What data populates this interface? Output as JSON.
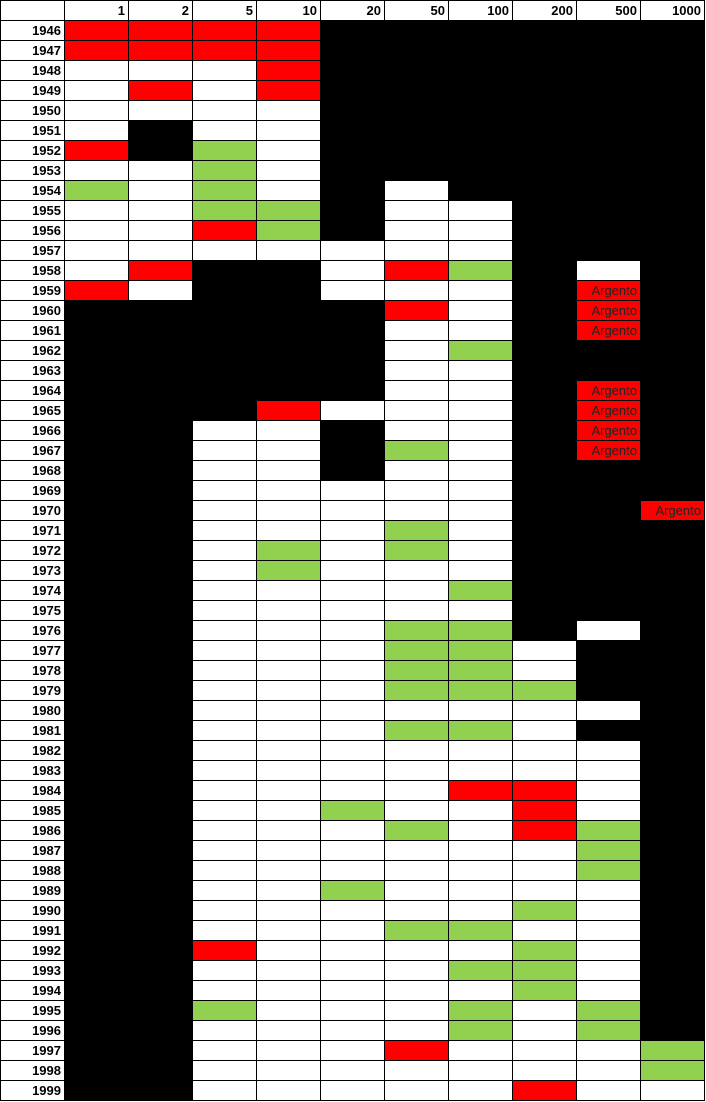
{
  "header": {
    "corner": null,
    "columns": [
      "1",
      "2",
      "5",
      "10",
      "20",
      "50",
      "100",
      "200",
      "500",
      "1000"
    ]
  },
  "palette": {
    "W": "#ffffff",
    "B": "#000000",
    "R": "#ff0000",
    "G": "#92d050"
  },
  "rows": [
    {
      "year": "1946",
      "fill": "RRRRBBBBBB"
    },
    {
      "year": "1947",
      "fill": "RRRRBBBBBB"
    },
    {
      "year": "1948",
      "fill": "WWWRBBBBBB"
    },
    {
      "year": "1949",
      "fill": "WRWRBBBBBB"
    },
    {
      "year": "1950",
      "fill": "WWWWBBBBBB"
    },
    {
      "year": "1951",
      "fill": "WBWWBBBBBB"
    },
    {
      "year": "1952",
      "fill": "RBGWBBBBBB"
    },
    {
      "year": "1953",
      "fill": "WWGWBBBBBB"
    },
    {
      "year": "1954",
      "fill": "GWGWBWBBBB"
    },
    {
      "year": "1955",
      "fill": "WWGGBWWBBB"
    },
    {
      "year": "1956",
      "fill": "WWRGBWWBBB"
    },
    {
      "year": "1957",
      "fill": "WWWWWWWBBB"
    },
    {
      "year": "1958",
      "fill": "WRBBWRGBWB"
    },
    {
      "year": "1959",
      "fill": "RWBBWWWBRB",
      "text": {
        "8": "Argento"
      }
    },
    {
      "year": "1960",
      "fill": "BBBBBRWBRB",
      "text": {
        "8": "Argento"
      }
    },
    {
      "year": "1961",
      "fill": "BBBBBWWBRB",
      "text": {
        "8": "Argento"
      }
    },
    {
      "year": "1962",
      "fill": "BBBBBWGBBB"
    },
    {
      "year": "1963",
      "fill": "BBBBBWWBBB"
    },
    {
      "year": "1964",
      "fill": "BBBBBWWBRB",
      "text": {
        "8": "Argento"
      }
    },
    {
      "year": "1965",
      "fill": "BBBRWWWBRB",
      "text": {
        "8": "Argento"
      }
    },
    {
      "year": "1966",
      "fill": "BBWWBWWBRB",
      "text": {
        "8": "Argento"
      }
    },
    {
      "year": "1967",
      "fill": "BBWWBGWBRB",
      "text": {
        "8": "Argento"
      }
    },
    {
      "year": "1968",
      "fill": "BBWWBWWBBB"
    },
    {
      "year": "1969",
      "fill": "BBWWWWWBBB"
    },
    {
      "year": "1970",
      "fill": "BBWWWWWBBR",
      "text": {
        "9": "Argento"
      }
    },
    {
      "year": "1971",
      "fill": "BBWWWGWBBB"
    },
    {
      "year": "1972",
      "fill": "BBWGWGWBBB"
    },
    {
      "year": "1973",
      "fill": "BBWGWWWBBB"
    },
    {
      "year": "1974",
      "fill": "BBWWWWGBBB"
    },
    {
      "year": "1975",
      "fill": "BBWWWWWBBB"
    },
    {
      "year": "1976",
      "fill": "BBWWWGGBWB"
    },
    {
      "year": "1977",
      "fill": "BBWWWGGWBB"
    },
    {
      "year": "1978",
      "fill": "BBWWWGGWBB"
    },
    {
      "year": "1979",
      "fill": "BBWWWGGGBB"
    },
    {
      "year": "1980",
      "fill": "BBWWWWWWWB"
    },
    {
      "year": "1981",
      "fill": "BBWWWGGWBB"
    },
    {
      "year": "1982",
      "fill": "BBWWWWWWWB"
    },
    {
      "year": "1983",
      "fill": "BBWWWWWWWB"
    },
    {
      "year": "1984",
      "fill": "BBWWWWRRWB"
    },
    {
      "year": "1985",
      "fill": "BBWWGWWRWB"
    },
    {
      "year": "1986",
      "fill": "BBWWWGWRGB"
    },
    {
      "year": "1987",
      "fill": "BBWWWWWWGB"
    },
    {
      "year": "1988",
      "fill": "BBWWWWWWGB"
    },
    {
      "year": "1989",
      "fill": "BBWWGWWWWB"
    },
    {
      "year": "1990",
      "fill": "BBWWWWWGWB"
    },
    {
      "year": "1991",
      "fill": "BBWWWGGWWB"
    },
    {
      "year": "1992",
      "fill": "BBRWWWWGWB"
    },
    {
      "year": "1993",
      "fill": "BBWWWWGGWB"
    },
    {
      "year": "1994",
      "fill": "BBWWWWWGWB"
    },
    {
      "year": "1995",
      "fill": "BBGWWWGWGB"
    },
    {
      "year": "1996",
      "fill": "BBWWWWGWGB"
    },
    {
      "year": "1997",
      "fill": "BBWWWRWWWG"
    },
    {
      "year": "1998",
      "fill": "BBWWWWWWWG"
    },
    {
      "year": "1999",
      "fill": "BBWWWWWRWW"
    }
  ]
}
